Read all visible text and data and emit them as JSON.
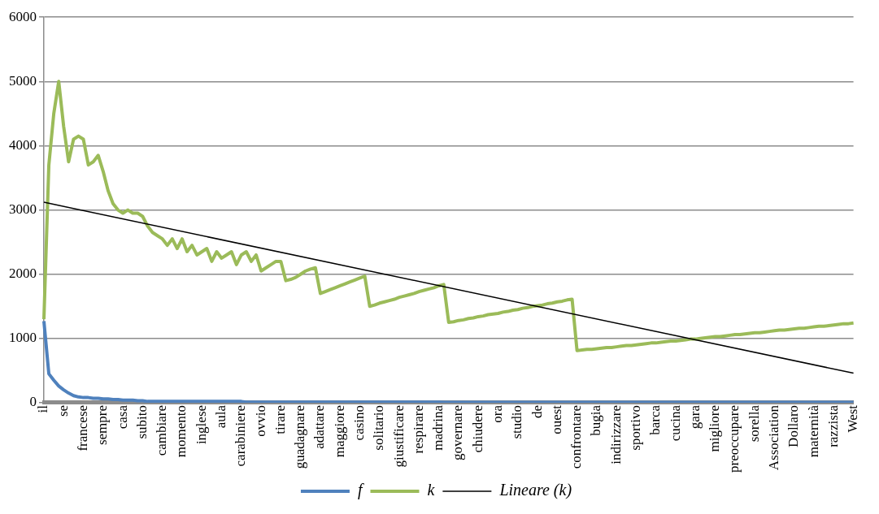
{
  "chart_data": {
    "type": "line",
    "categories": [
      "il",
      null,
      null,
      null,
      "se",
      null,
      null,
      null,
      "francese",
      null,
      null,
      null,
      "sempre",
      null,
      null,
      null,
      "casa",
      null,
      null,
      null,
      "subito",
      null,
      null,
      null,
      "cambiare",
      null,
      null,
      null,
      "momento",
      null,
      null,
      null,
      "inglese",
      null,
      null,
      null,
      "aula",
      null,
      null,
      null,
      "carabiniere",
      null,
      null,
      null,
      "ovvio",
      null,
      null,
      null,
      "tirare",
      null,
      null,
      null,
      "guadagnare",
      null,
      null,
      null,
      "adattare",
      null,
      null,
      null,
      "maggiore",
      null,
      null,
      null,
      "casino",
      null,
      null,
      null,
      "solitario",
      null,
      null,
      null,
      "giustificare",
      null,
      null,
      null,
      "respirare",
      null,
      null,
      null,
      "madrina",
      null,
      null,
      null,
      "governare",
      null,
      null,
      null,
      "chiudere",
      null,
      null,
      null,
      "ora",
      null,
      null,
      null,
      "studio",
      null,
      null,
      null,
      "de",
      null,
      null,
      null,
      "ouest",
      null,
      null,
      null,
      "confrontare",
      null,
      null,
      null,
      "bugia",
      null,
      null,
      null,
      "indirizzare",
      null,
      null,
      null,
      "sportivo",
      null,
      null,
      null,
      "barca",
      null,
      null,
      null,
      "cucina",
      null,
      null,
      null,
      "gara",
      null,
      null,
      null,
      "migliore",
      null,
      null,
      null,
      "preoccupare",
      null,
      null,
      null,
      "sorella",
      null,
      null,
      null,
      "Association",
      null,
      null,
      null,
      "Dollaro",
      null,
      null,
      null,
      "maternità",
      null,
      null,
      null,
      "razzista",
      null,
      null,
      null,
      "West"
    ],
    "series": [
      {
        "name": "f",
        "color": "#4f81bd",
        "values": [
          1270,
          450,
          350,
          260,
          200,
          150,
          110,
          90,
          80,
          80,
          70,
          70,
          60,
          60,
          50,
          50,
          40,
          40,
          40,
          30,
          30,
          20,
          20,
          20,
          20,
          20,
          20,
          20,
          20,
          20,
          20,
          20,
          20,
          20,
          20,
          20,
          20,
          20,
          20,
          20,
          20,
          10,
          10,
          10,
          10,
          10,
          10,
          10,
          10,
          10,
          10,
          10,
          10,
          10,
          10,
          10,
          10,
          10,
          10,
          10,
          10,
          10,
          10,
          10,
          10,
          10,
          10,
          10,
          10,
          10,
          10,
          10,
          10,
          10,
          10,
          10,
          10,
          10,
          10,
          10,
          10,
          5,
          5,
          5,
          5,
          5,
          5,
          5,
          5,
          5,
          5,
          5,
          5,
          5,
          5,
          5,
          5,
          5,
          5,
          5,
          5,
          5,
          5,
          5,
          5,
          5,
          5,
          5,
          5,
          5,
          5,
          5,
          5,
          5,
          5,
          5,
          5,
          5,
          5,
          5,
          5,
          5,
          5,
          5,
          5,
          5,
          5,
          5,
          5,
          5,
          5,
          5,
          5,
          5,
          5,
          5,
          5,
          5,
          5,
          5,
          5,
          5,
          5,
          5,
          5,
          5,
          5,
          5,
          5,
          5,
          5,
          5,
          5,
          5,
          5,
          5,
          5,
          5,
          5,
          5,
          5,
          5,
          5,
          5,
          5
        ]
      },
      {
        "name": "k",
        "color": "#9bbb59",
        "values": [
          1300,
          3700,
          4500,
          5000,
          4300,
          3750,
          4100,
          4150,
          4100,
          3700,
          3750,
          3850,
          3600,
          3300,
          3100,
          3000,
          2950,
          3000,
          2950,
          2950,
          2900,
          2750,
          2650,
          2600,
          2550,
          2450,
          2550,
          2400,
          2550,
          2350,
          2450,
          2300,
          2350,
          2400,
          2200,
          2350,
          2250,
          2300,
          2350,
          2150,
          2300,
          2350,
          2200,
          2300,
          2050,
          2100,
          2150,
          2200,
          2200,
          1900,
          1920,
          1950,
          2000,
          2050,
          2080,
          2100,
          1700,
          1730,
          1760,
          1790,
          1820,
          1850,
          1880,
          1910,
          1940,
          1970,
          1500,
          1520,
          1550,
          1570,
          1590,
          1610,
          1640,
          1660,
          1680,
          1700,
          1730,
          1750,
          1770,
          1790,
          1820,
          1840,
          1250,
          1260,
          1280,
          1290,
          1310,
          1320,
          1340,
          1350,
          1370,
          1380,
          1390,
          1410,
          1420,
          1440,
          1450,
          1470,
          1480,
          1500,
          1510,
          1520,
          1540,
          1550,
          1570,
          1580,
          1600,
          1610,
          810,
          820,
          830,
          830,
          840,
          850,
          860,
          860,
          870,
          880,
          890,
          890,
          900,
          910,
          920,
          930,
          930,
          940,
          950,
          960,
          960,
          970,
          980,
          990,
          990,
          1000,
          1010,
          1020,
          1030,
          1030,
          1040,
          1050,
          1060,
          1060,
          1070,
          1080,
          1090,
          1090,
          1100,
          1110,
          1120,
          1130,
          1130,
          1140,
          1150,
          1160,
          1160,
          1170,
          1180,
          1190,
          1190,
          1200,
          1210,
          1220,
          1230,
          1230,
          1240
        ]
      },
      {
        "name": "Lineare (k)",
        "type": "line",
        "color": "#000000",
        "x": [
          "il",
          "West"
        ],
        "values": [
          3120,
          460
        ]
      }
    ],
    "ylim": [
      0,
      6000
    ],
    "yticks": [
      0,
      1000,
      2000,
      3000,
      4000,
      5000,
      6000
    ],
    "grid": "y",
    "legend": "bottom",
    "marker": "none"
  }
}
